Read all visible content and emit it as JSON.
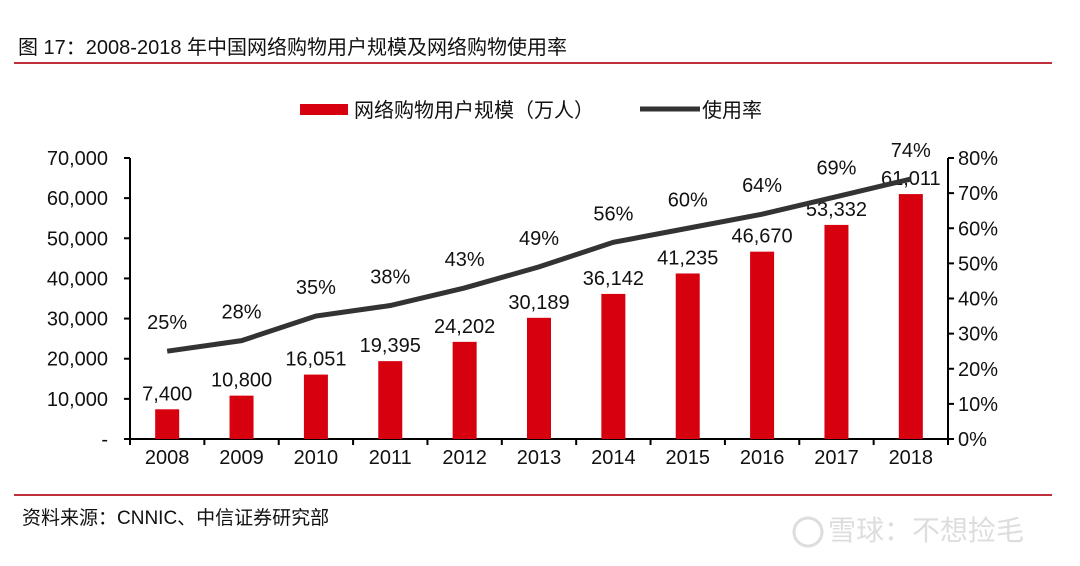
{
  "header": {
    "title": "图 17：2008-2018 年中国网络购物用户规模及网络购物使用率"
  },
  "footer": {
    "source": "资料来源：CNNIC、中信证券研究部",
    "watermark": "雪球：不想捡毛"
  },
  "chart_data": {
    "type": "bar+line",
    "categories": [
      "2008",
      "2009",
      "2010",
      "2011",
      "2012",
      "2013",
      "2014",
      "2015",
      "2016",
      "2017",
      "2018"
    ],
    "series": [
      {
        "name": "网络购物用户规模（万人）",
        "type": "bar",
        "axis": "left",
        "color": "#d7000f",
        "values": [
          7400,
          10800,
          16051,
          19395,
          24202,
          30189,
          36142,
          41235,
          46670,
          53332,
          61011
        ],
        "labels": [
          "7,400",
          "10,800",
          "16,051",
          "19,395",
          "24,202",
          "30,189",
          "36,142",
          "41,235",
          "46,670",
          "53,332",
          "61,011"
        ]
      },
      {
        "name": "使用率",
        "type": "line",
        "axis": "right",
        "color": "#333333",
        "values": [
          25,
          28,
          35,
          38,
          43,
          49,
          56,
          60,
          64,
          69,
          74
        ],
        "labels": [
          "25%",
          "28%",
          "35%",
          "38%",
          "43%",
          "49%",
          "56%",
          "60%",
          "64%",
          "69%",
          "74%"
        ]
      }
    ],
    "y_left": {
      "range": [
        0,
        70000
      ],
      "ticks": [
        0,
        10000,
        20000,
        30000,
        40000,
        50000,
        60000,
        70000
      ],
      "tick_labels": [
        "-",
        "10,000",
        "20,000",
        "30,000",
        "40,000",
        "50,000",
        "60,000",
        "70,000"
      ]
    },
    "y_right": {
      "range": [
        0,
        80
      ],
      "ticks": [
        0,
        10,
        20,
        30,
        40,
        50,
        60,
        70,
        80
      ],
      "tick_labels": [
        "0%",
        "10%",
        "20%",
        "30%",
        "40%",
        "50%",
        "60%",
        "70%",
        "80%"
      ]
    },
    "legend": "top-center",
    "grid": false
  }
}
